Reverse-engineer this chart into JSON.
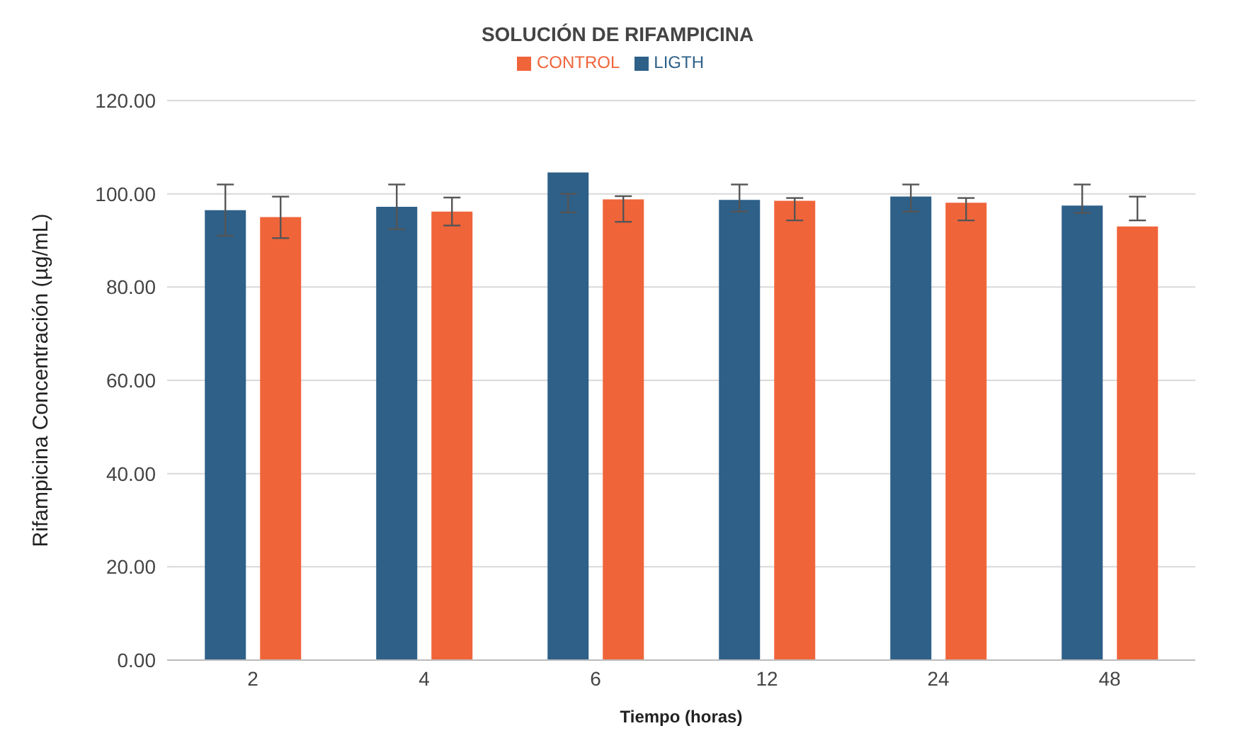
{
  "chart_data": {
    "type": "bar",
    "title": "SOLUCIÓN DE RIFAMPICINA",
    "xlabel": "Tiempo (horas)",
    "ylabel": "Rifampicina Concentración (µg/mL)",
    "categories": [
      "2",
      "4",
      "6",
      "12",
      "24",
      "48"
    ],
    "series": [
      {
        "name": "LIGTH",
        "color": "#2e6088",
        "values": [
          96.5,
          97.2,
          104.6,
          98.7,
          99.4,
          97.5
        ],
        "errors": [
          [
            91,
            102
          ],
          [
            92.4,
            102
          ],
          [
            96,
            100
          ],
          [
            96.2,
            102
          ],
          [
            96.2,
            102
          ],
          [
            95.9,
            102
          ]
        ]
      },
      {
        "name": "CONTROL",
        "color": "#f0643a",
        "values": [
          95,
          96.2,
          98.8,
          98.5,
          98.1,
          93
        ],
        "errors": [
          [
            90.5,
            99.4
          ],
          [
            93.2,
            99.2
          ],
          [
            94,
            99.5
          ],
          [
            94.3,
            99.1
          ],
          [
            94.3,
            99.1
          ],
          [
            94.3,
            99.4
          ]
        ]
      }
    ],
    "ylim": [
      0,
      120
    ],
    "yticks": [
      {
        "value": 0,
        "label": "0.00"
      },
      {
        "value": 20,
        "label": "20.00"
      },
      {
        "value": 40,
        "label": "40.00"
      },
      {
        "value": 60,
        "label": "60.00"
      },
      {
        "value": 80,
        "label": "80.00"
      },
      {
        "value": 100,
        "label": "100.00"
      },
      {
        "value": 120,
        "label": "120.00"
      }
    ],
    "grid": "y",
    "legend": "top"
  }
}
